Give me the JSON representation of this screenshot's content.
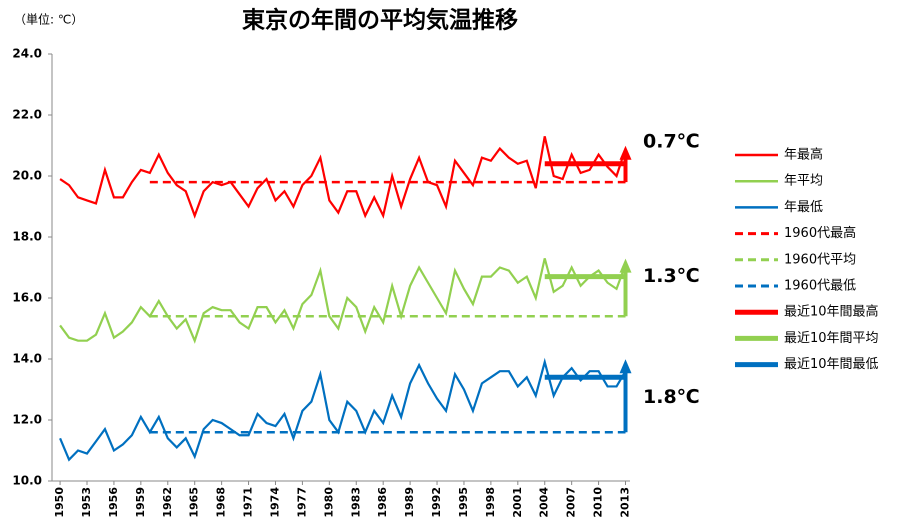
{
  "chart_data": {
    "type": "line",
    "title": "東京の年間の平均気温推移",
    "unit_label": "（単位: ℃）",
    "x": [
      1950,
      1951,
      1952,
      1953,
      1954,
      1955,
      1956,
      1957,
      1958,
      1959,
      1960,
      1961,
      1962,
      1963,
      1964,
      1965,
      1966,
      1967,
      1968,
      1969,
      1970,
      1971,
      1972,
      1973,
      1974,
      1975,
      1976,
      1977,
      1978,
      1979,
      1980,
      1981,
      1982,
      1983,
      1984,
      1985,
      1986,
      1987,
      1988,
      1989,
      1990,
      1991,
      1992,
      1993,
      1994,
      1995,
      1996,
      1997,
      1998,
      1999,
      2000,
      2001,
      2002,
      2003,
      2004,
      2005,
      2006,
      2007,
      2008,
      2009,
      2010,
      2011,
      2012,
      2013
    ],
    "xlim": [
      1949.1,
      2013.5
    ],
    "xticks": [
      1950,
      1953,
      1956,
      1959,
      1962,
      1965,
      1968,
      1971,
      1974,
      1977,
      1980,
      1983,
      1986,
      1989,
      1992,
      1995,
      1998,
      2001,
      2004,
      2007,
      2010,
      2013
    ],
    "ylim": [
      10,
      24
    ],
    "yticks": [
      {
        "value": 10,
        "label": "10.0"
      },
      {
        "value": 12,
        "label": "12.0"
      },
      {
        "value": 14,
        "label": "14.0"
      },
      {
        "value": 16,
        "label": "16.0"
      },
      {
        "value": 18,
        "label": "18.0"
      },
      {
        "value": 20,
        "label": "20.0"
      },
      {
        "value": 22,
        "label": "22.0"
      },
      {
        "value": 24,
        "label": "24.0"
      }
    ],
    "grid": false,
    "legend": "right",
    "series": [
      {
        "name": "年最高",
        "color": "#ff0000",
        "values": [
          19.9,
          19.7,
          19.3,
          19.2,
          19.1,
          20.2,
          19.3,
          19.3,
          19.8,
          20.2,
          20.1,
          20.7,
          20.1,
          19.7,
          19.5,
          18.7,
          19.5,
          19.8,
          19.7,
          19.8,
          19.4,
          19.0,
          19.6,
          19.9,
          19.2,
          19.5,
          19.0,
          19.7,
          20.0,
          20.6,
          19.2,
          18.8,
          19.5,
          19.5,
          18.7,
          19.3,
          18.7,
          20.0,
          19.0,
          19.9,
          20.6,
          19.8,
          19.7,
          19.0,
          20.5,
          20.1,
          19.7,
          20.6,
          20.5,
          20.9,
          20.6,
          20.4,
          20.5,
          19.6,
          21.3,
          20.0,
          19.9,
          20.7,
          20.1,
          20.2,
          20.7,
          20.3,
          20.0,
          20.9
        ]
      },
      {
        "name": "年平均",
        "color": "#92d050",
        "values": [
          15.1,
          14.7,
          14.6,
          14.6,
          14.8,
          15.5,
          14.7,
          14.9,
          15.2,
          15.7,
          15.4,
          15.9,
          15.4,
          15.0,
          15.3,
          14.6,
          15.5,
          15.7,
          15.6,
          15.6,
          15.2,
          15.0,
          15.7,
          15.7,
          15.2,
          15.6,
          15.0,
          15.8,
          16.1,
          16.9,
          15.4,
          15.0,
          16.0,
          15.7,
          14.9,
          15.7,
          15.2,
          16.4,
          15.4,
          16.4,
          17.0,
          16.5,
          16.0,
          15.5,
          16.9,
          16.3,
          15.8,
          16.7,
          16.7,
          17.0,
          16.9,
          16.5,
          16.7,
          16.0,
          17.3,
          16.2,
          16.4,
          17.0,
          16.4,
          16.7,
          16.9,
          16.5,
          16.3,
          17.1
        ]
      },
      {
        "name": "年最低",
        "color": "#0070c0",
        "values": [
          11.4,
          10.7,
          11.0,
          10.9,
          11.3,
          11.7,
          11.0,
          11.2,
          11.5,
          12.1,
          11.6,
          12.1,
          11.4,
          11.1,
          11.4,
          10.8,
          11.7,
          12.0,
          11.9,
          11.7,
          11.5,
          11.5,
          12.2,
          11.9,
          11.8,
          12.2,
          11.4,
          12.3,
          12.6,
          13.5,
          12.0,
          11.6,
          12.6,
          12.3,
          11.6,
          12.3,
          11.9,
          12.8,
          12.1,
          13.2,
          13.8,
          13.2,
          12.7,
          12.3,
          13.5,
          13.0,
          12.3,
          13.2,
          13.4,
          13.6,
          13.6,
          13.1,
          13.4,
          12.8,
          13.9,
          12.8,
          13.4,
          13.7,
          13.3,
          13.6,
          13.6,
          13.1,
          13.1,
          13.6
        ]
      }
    ],
    "averages": [
      {
        "name": "1960代最高",
        "color": "#ff0000",
        "dashed": true,
        "value": 19.8,
        "x": [
          1960,
          2013
        ]
      },
      {
        "name": "1960代平均",
        "color": "#92d050",
        "dashed": true,
        "value": 15.4,
        "x": [
          1960,
          2013
        ]
      },
      {
        "name": "1960代最低",
        "color": "#0070c0",
        "dashed": true,
        "value": 11.6,
        "x": [
          1960,
          2013
        ]
      },
      {
        "name": "最近10年間最高",
        "color": "#ff0000",
        "dashed": false,
        "value": 20.4,
        "x": [
          2004,
          2013
        ]
      },
      {
        "name": "最近10年間平均",
        "color": "#92d050",
        "dashed": false,
        "value": 16.7,
        "x": [
          2004,
          2013
        ]
      },
      {
        "name": "最近10年間最低",
        "color": "#0070c0",
        "dashed": false,
        "value": 13.4,
        "x": [
          2004,
          2013
        ]
      }
    ],
    "annotations": [
      {
        "text": "0.7℃"
      },
      {
        "text": "1.3℃"
      },
      {
        "text": "1.8℃"
      }
    ]
  }
}
